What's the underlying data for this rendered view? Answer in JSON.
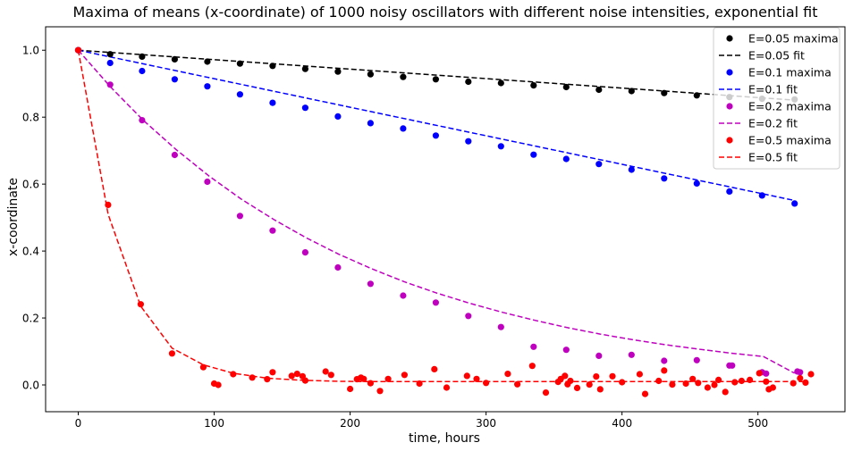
{
  "chart_data": {
    "type": "scatter",
    "title": "Maxima of means (x-coordinate) of 1000 noisy oscillators with different noise intensities, exponential fit",
    "xlabel": "time, hours",
    "ylabel": "x-coordinate",
    "xlim": [
      -24,
      564
    ],
    "ylim": [
      -0.08,
      1.07
    ],
    "xticks": [
      0,
      100,
      200,
      300,
      400,
      500
    ],
    "yticks": [
      0.0,
      0.2,
      0.4,
      0.6,
      0.8,
      1.0
    ],
    "xtick_labels": [
      "0",
      "100",
      "200",
      "300",
      "400",
      "500"
    ],
    "ytick_labels": [
      "0.0",
      "0.2",
      "0.4",
      "0.6",
      "0.8",
      "1.0"
    ],
    "grid": false,
    "legend_position": "top-right",
    "series": [
      {
        "name": "E=0.05 maxima",
        "kind": "points",
        "color": "#000000",
        "x": [
          0,
          23.5,
          47,
          71,
          95,
          119,
          143,
          167,
          191,
          215,
          239,
          263,
          287,
          311,
          335,
          359,
          383,
          407,
          431,
          455,
          479,
          503,
          527
        ],
        "y": [
          1.0,
          0.988,
          0.981,
          0.973,
          0.966,
          0.96,
          0.953,
          0.944,
          0.936,
          0.928,
          0.92,
          0.913,
          0.906,
          0.902,
          0.895,
          0.89,
          0.882,
          0.878,
          0.872,
          0.865,
          0.86,
          0.855,
          0.853
        ]
      },
      {
        "name": "E=0.05 fit",
        "kind": "line",
        "color": "#000000",
        "x": [
          0,
          527
        ],
        "y": [
          1.0,
          0.851
        ]
      },
      {
        "name": "E=0.1 maxima",
        "kind": "points",
        "color": "#0000ff",
        "x": [
          0,
          23.5,
          47,
          71,
          95,
          119,
          143,
          167,
          191,
          215,
          239,
          263,
          287,
          311,
          335,
          359,
          383,
          407,
          431,
          455,
          479,
          503,
          527
        ],
        "y": [
          1.0,
          0.962,
          0.938,
          0.913,
          0.892,
          0.868,
          0.843,
          0.828,
          0.802,
          0.782,
          0.766,
          0.745,
          0.728,
          0.713,
          0.688,
          0.675,
          0.66,
          0.643,
          0.617,
          0.602,
          0.578,
          0.566,
          0.542
        ]
      },
      {
        "name": "E=0.1 fit",
        "kind": "line",
        "color": "#0000ff",
        "x": [
          0,
          527
        ],
        "y": [
          1.0,
          0.551
        ]
      },
      {
        "name": "E=0.2 maxima",
        "kind": "points",
        "color": "#bf00bf",
        "x": [
          0,
          23.5,
          47,
          71,
          95,
          119,
          143,
          167,
          191,
          215,
          239,
          263,
          287,
          311,
          335,
          359,
          383,
          407,
          431,
          455,
          479,
          481,
          503,
          506,
          529,
          531
        ],
        "y": [
          1.0,
          0.897,
          0.791,
          0.687,
          0.607,
          0.505,
          0.461,
          0.396,
          0.351,
          0.302,
          0.267,
          0.246,
          0.206,
          0.173,
          0.114,
          0.105,
          0.087,
          0.09,
          0.072,
          0.074,
          0.058,
          0.058,
          0.038,
          0.034,
          0.04,
          0.038
        ]
      },
      {
        "name": "E=0.2 fit",
        "kind": "line",
        "color": "#bf00bf",
        "x": [
          0,
          24,
          48,
          72,
          96,
          120,
          144,
          168,
          192,
          216,
          240,
          264,
          288,
          312,
          336,
          360,
          384,
          408,
          432,
          456,
          480,
          504,
          527
        ],
        "y": [
          1.0,
          0.889,
          0.79,
          0.703,
          0.625,
          0.555,
          0.494,
          0.439,
          0.39,
          0.347,
          0.308,
          0.274,
          0.244,
          0.217,
          0.193,
          0.171,
          0.152,
          0.135,
          0.12,
          0.107,
          0.095,
          0.085,
          0.035
        ]
      },
      {
        "name": "E=0.5 maxima",
        "kind": "points",
        "color": "#ff0000",
        "x": [
          0,
          22,
          46,
          69,
          92,
          100,
          103,
          114,
          128,
          139,
          143,
          157,
          161,
          165,
          167,
          182,
          186,
          200,
          205,
          208,
          210,
          215,
          222,
          228,
          240,
          251,
          262,
          271,
          286,
          293,
          300,
          316,
          323,
          334,
          344,
          353,
          355,
          358,
          360,
          362,
          367,
          376,
          381,
          384,
          393,
          400,
          413,
          417,
          427,
          431,
          437,
          447,
          452,
          456,
          463,
          468,
          471,
          476,
          483,
          488,
          494,
          501,
          506,
          508,
          511,
          526,
          531,
          535,
          539
        ],
        "y": [
          1.0,
          0.538,
          0.241,
          0.094,
          0.053,
          0.004,
          0.0,
          0.032,
          0.022,
          0.017,
          0.038,
          0.027,
          0.033,
          0.026,
          0.013,
          0.04,
          0.03,
          -0.012,
          0.017,
          0.022,
          0.018,
          0.005,
          -0.018,
          0.018,
          0.03,
          0.004,
          0.047,
          -0.008,
          0.027,
          0.018,
          0.006,
          0.033,
          0.002,
          0.057,
          -0.023,
          0.009,
          0.018,
          0.027,
          0.002,
          0.012,
          -0.009,
          0.001,
          0.025,
          -0.013,
          0.026,
          0.008,
          0.032,
          -0.027,
          0.012,
          0.043,
          0.001,
          0.004,
          0.018,
          0.006,
          -0.008,
          0.0,
          0.015,
          -0.021,
          0.008,
          0.012,
          0.015,
          0.035,
          0.01,
          -0.013,
          -0.008,
          0.005,
          0.02,
          0.007,
          0.032
        ]
      },
      {
        "name": "E=0.5 fit",
        "kind": "line",
        "color": "#ff0000",
        "x": [
          0,
          22,
          46,
          69,
          92,
          114,
          139,
          165,
          190,
          215,
          240,
          265,
          290,
          315,
          340,
          365,
          390,
          415,
          440,
          465,
          490,
          515,
          535
        ],
        "y": [
          1.0,
          0.51,
          0.235,
          0.11,
          0.06,
          0.035,
          0.02,
          0.014,
          0.011,
          0.01,
          0.01,
          0.01,
          0.01,
          0.01,
          0.01,
          0.01,
          0.01,
          0.01,
          0.01,
          0.01,
          0.01,
          0.01,
          0.01
        ]
      }
    ]
  }
}
